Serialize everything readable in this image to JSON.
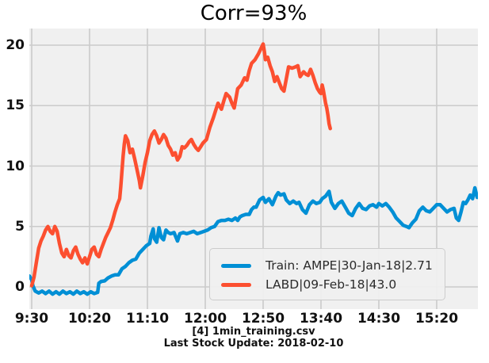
{
  "title": "Corr=93%",
  "captions": {
    "line1": "[4] 1min_training.csv",
    "line2": "Last Stock Update: 2018-02-10"
  },
  "legend": {
    "items": [
      {
        "label": "Train: AMPE|30-Jan-18|2.71",
        "color": "#008fd5"
      },
      {
        "label": "LABD|09-Feb-18|43.0",
        "color": "#fc4f30"
      }
    ]
  },
  "colors": {
    "figure_background": "#ffffff",
    "axes_background": "#f0f0f0",
    "grid": "#cbcbcb",
    "train_line": "#008fd5",
    "labd_line": "#fc4f30",
    "text": "#111111"
  },
  "chart_data": {
    "type": "line",
    "title": "Corr=93%",
    "xlabel": "",
    "ylabel": "",
    "grid": true,
    "legend_position": "lower right",
    "x_unit": "minutes since 9:30",
    "xlim": [
      -2.1,
      385.5
    ],
    "ylim": [
      -1.85,
      21.4
    ],
    "y_ticks": [
      0,
      5,
      10,
      15,
      20
    ],
    "x_ticks": [
      {
        "t": 0,
        "label": "9:30"
      },
      {
        "t": 50,
        "label": "10:20"
      },
      {
        "t": 100,
        "label": "11:10"
      },
      {
        "t": 150,
        "label": "12:00"
      },
      {
        "t": 200,
        "label": "12:50"
      },
      {
        "t": 250,
        "label": "13:40"
      },
      {
        "t": 300,
        "label": "14:30"
      },
      {
        "t": 350,
        "label": "15:20"
      }
    ],
    "series": [
      {
        "name": "Train: AMPE|30-Jan-18|2.71",
        "color": "#008fd5",
        "points": [
          [
            -2,
            0.9
          ],
          [
            0,
            0.6
          ],
          [
            1,
            0.1
          ],
          [
            3,
            -0.35
          ],
          [
            6,
            -0.5
          ],
          [
            9,
            -0.35
          ],
          [
            12,
            -0.55
          ],
          [
            15,
            -0.35
          ],
          [
            18,
            -0.6
          ],
          [
            21,
            -0.4
          ],
          [
            24,
            -0.6
          ],
          [
            27,
            -0.35
          ],
          [
            30,
            -0.55
          ],
          [
            33,
            -0.4
          ],
          [
            36,
            -0.6
          ],
          [
            39,
            -0.35
          ],
          [
            42,
            -0.55
          ],
          [
            45,
            -0.4
          ],
          [
            48,
            -0.6
          ],
          [
            51,
            -0.4
          ],
          [
            54,
            -0.55
          ],
          [
            57,
            -0.45
          ],
          [
            58,
            0.3
          ],
          [
            60,
            0.45
          ],
          [
            63,
            0.5
          ],
          [
            66,
            0.75
          ],
          [
            69,
            0.9
          ],
          [
            72,
            1.0
          ],
          [
            75,
            1.0
          ],
          [
            78,
            1.5
          ],
          [
            81,
            1.7
          ],
          [
            84,
            2.0
          ],
          [
            87,
            2.2
          ],
          [
            90,
            2.3
          ],
          [
            93,
            2.8
          ],
          [
            96,
            3.1
          ],
          [
            99,
            3.4
          ],
          [
            102,
            3.6
          ],
          [
            103,
            4.2
          ],
          [
            105,
            4.8
          ],
          [
            106,
            4.0
          ],
          [
            108,
            3.7
          ],
          [
            110,
            4.9
          ],
          [
            112,
            4.1
          ],
          [
            114,
            3.9
          ],
          [
            116,
            4.7
          ],
          [
            118,
            4.5
          ],
          [
            120,
            4.4
          ],
          [
            123,
            4.5
          ],
          [
            126,
            3.8
          ],
          [
            128,
            4.4
          ],
          [
            131,
            4.5
          ],
          [
            134,
            4.4
          ],
          [
            137,
            4.5
          ],
          [
            140,
            4.6
          ],
          [
            143,
            4.4
          ],
          [
            146,
            4.5
          ],
          [
            149,
            4.6
          ],
          [
            152,
            4.7
          ],
          [
            155,
            4.9
          ],
          [
            158,
            5.0
          ],
          [
            161,
            5.4
          ],
          [
            164,
            5.5
          ],
          [
            167,
            5.5
          ],
          [
            170,
            5.6
          ],
          [
            173,
            5.5
          ],
          [
            176,
            5.7
          ],
          [
            178,
            5.5
          ],
          [
            180,
            5.8
          ],
          [
            182,
            5.9
          ],
          [
            185,
            6.0
          ],
          [
            188,
            6.0
          ],
          [
            190,
            6.4
          ],
          [
            192,
            6.6
          ],
          [
            194,
            6.6
          ],
          [
            197,
            7.2
          ],
          [
            200,
            7.4
          ],
          [
            202,
            7.0
          ],
          [
            205,
            7.3
          ],
          [
            208,
            6.8
          ],
          [
            211,
            7.5
          ],
          [
            213,
            7.8
          ],
          [
            215,
            7.6
          ],
          [
            218,
            7.7
          ],
          [
            220,
            7.2
          ],
          [
            223,
            6.9
          ],
          [
            226,
            7.1
          ],
          [
            229,
            6.9
          ],
          [
            231,
            7.0
          ],
          [
            234,
            6.4
          ],
          [
            237,
            6.1
          ],
          [
            240,
            6.8
          ],
          [
            243,
            7.1
          ],
          [
            246,
            6.9
          ],
          [
            249,
            7.0
          ],
          [
            251,
            7.3
          ],
          [
            254,
            7.5
          ],
          [
            257,
            7.9
          ],
          [
            259,
            7.0
          ],
          [
            262,
            6.5
          ],
          [
            265,
            6.9
          ],
          [
            268,
            7.1
          ],
          [
            271,
            6.6
          ],
          [
            274,
            6.1
          ],
          [
            277,
            5.9
          ],
          [
            280,
            6.5
          ],
          [
            283,
            6.9
          ],
          [
            286,
            6.5
          ],
          [
            289,
            6.4
          ],
          [
            292,
            6.7
          ],
          [
            295,
            6.8
          ],
          [
            298,
            6.6
          ],
          [
            300,
            6.9
          ],
          [
            303,
            6.7
          ],
          [
            306,
            6.9
          ],
          [
            309,
            6.6
          ],
          [
            312,
            6.2
          ],
          [
            315,
            5.7
          ],
          [
            318,
            5.4
          ],
          [
            321,
            5.1
          ],
          [
            324,
            5.0
          ],
          [
            326,
            4.9
          ],
          [
            329,
            5.3
          ],
          [
            332,
            5.6
          ],
          [
            335,
            6.3
          ],
          [
            338,
            6.6
          ],
          [
            341,
            6.3
          ],
          [
            344,
            6.2
          ],
          [
            347,
            6.5
          ],
          [
            350,
            6.8
          ],
          [
            353,
            6.8
          ],
          [
            356,
            6.5
          ],
          [
            359,
            6.2
          ],
          [
            362,
            6.4
          ],
          [
            365,
            6.5
          ],
          [
            367,
            5.7
          ],
          [
            369,
            5.5
          ],
          [
            371,
            6.2
          ],
          [
            373,
            7.0
          ],
          [
            375,
            6.9
          ],
          [
            377,
            7.2
          ],
          [
            379,
            7.6
          ],
          [
            381,
            7.3
          ],
          [
            383,
            8.2
          ],
          [
            385,
            7.4
          ]
        ]
      },
      {
        "name": "LABD|09-Feb-18|43.0",
        "color": "#fc4f30",
        "points": [
          [
            0,
            0.1
          ],
          [
            2,
            0.8
          ],
          [
            4,
            2.0
          ],
          [
            6,
            3.2
          ],
          [
            8,
            3.8
          ],
          [
            10,
            4.2
          ],
          [
            12,
            4.7
          ],
          [
            14,
            5.0
          ],
          [
            16,
            4.6
          ],
          [
            18,
            4.4
          ],
          [
            20,
            5.0
          ],
          [
            22,
            4.6
          ],
          [
            24,
            3.6
          ],
          [
            26,
            2.8
          ],
          [
            28,
            2.5
          ],
          [
            30,
            3.1
          ],
          [
            32,
            2.6
          ],
          [
            34,
            2.4
          ],
          [
            36,
            3.0
          ],
          [
            38,
            3.3
          ],
          [
            40,
            2.7
          ],
          [
            42,
            2.3
          ],
          [
            44,
            2.0
          ],
          [
            46,
            2.4
          ],
          [
            48,
            1.9
          ],
          [
            50,
            2.5
          ],
          [
            52,
            3.1
          ],
          [
            54,
            3.3
          ],
          [
            56,
            2.7
          ],
          [
            58,
            2.5
          ],
          [
            60,
            3.1
          ],
          [
            62,
            3.6
          ],
          [
            64,
            4.1
          ],
          [
            66,
            4.5
          ],
          [
            68,
            4.9
          ],
          [
            70,
            5.5
          ],
          [
            72,
            6.2
          ],
          [
            74,
            6.8
          ],
          [
            76,
            7.3
          ],
          [
            77,
            8.3
          ],
          [
            78,
            9.6
          ],
          [
            79,
            10.8
          ],
          [
            80,
            11.8
          ],
          [
            81,
            12.5
          ],
          [
            83,
            12.1
          ],
          [
            85,
            11.1
          ],
          [
            87,
            11.4
          ],
          [
            89,
            10.6
          ],
          [
            91,
            9.7
          ],
          [
            93,
            8.8
          ],
          [
            94,
            8.2
          ],
          [
            96,
            9.2
          ],
          [
            98,
            10.3
          ],
          [
            100,
            11.1
          ],
          [
            102,
            12.1
          ],
          [
            104,
            12.6
          ],
          [
            106,
            12.9
          ],
          [
            108,
            12.5
          ],
          [
            110,
            11.9
          ],
          [
            112,
            12.2
          ],
          [
            114,
            12.6
          ],
          [
            116,
            12.3
          ],
          [
            118,
            11.7
          ],
          [
            120,
            11.4
          ],
          [
            122,
            10.9
          ],
          [
            124,
            11.1
          ],
          [
            126,
            10.5
          ],
          [
            128,
            10.8
          ],
          [
            130,
            11.6
          ],
          [
            132,
            11.5
          ],
          [
            134,
            11.7
          ],
          [
            136,
            12.0
          ],
          [
            138,
            12.2
          ],
          [
            140,
            11.8
          ],
          [
            142,
            11.5
          ],
          [
            144,
            11.3
          ],
          [
            146,
            11.6
          ],
          [
            148,
            11.9
          ],
          [
            151,
            12.2
          ],
          [
            154,
            13.2
          ],
          [
            157,
            14.0
          ],
          [
            159,
            14.6
          ],
          [
            161,
            15.2
          ],
          [
            164,
            14.7
          ],
          [
            166,
            15.4
          ],
          [
            168,
            16.0
          ],
          [
            171,
            15.7
          ],
          [
            173,
            15.2
          ],
          [
            175,
            14.8
          ],
          [
            178,
            16.4
          ],
          [
            181,
            16.7
          ],
          [
            184,
            17.3
          ],
          [
            186,
            17.1
          ],
          [
            188,
            17.9
          ],
          [
            190,
            18.5
          ],
          [
            193,
            18.8
          ],
          [
            196,
            19.3
          ],
          [
            198,
            19.7
          ],
          [
            200,
            20.1
          ],
          [
            201,
            19.5
          ],
          [
            202,
            18.8
          ],
          [
            204,
            19.0
          ],
          [
            206,
            18.3
          ],
          [
            208,
            17.8
          ],
          [
            210,
            17.0
          ],
          [
            212,
            17.4
          ],
          [
            214,
            16.9
          ],
          [
            216,
            16.4
          ],
          [
            218,
            16.2
          ],
          [
            220,
            17.2
          ],
          [
            222,
            18.2
          ],
          [
            225,
            18.1
          ],
          [
            228,
            18.2
          ],
          [
            230,
            18.3
          ],
          [
            232,
            17.4
          ],
          [
            235,
            17.8
          ],
          [
            237,
            17.6
          ],
          [
            239,
            17.5
          ],
          [
            241,
            18.0
          ],
          [
            243,
            17.5
          ],
          [
            245,
            16.9
          ],
          [
            247,
            16.4
          ],
          [
            249,
            16.1
          ],
          [
            250,
            16.0
          ],
          [
            251,
            16.7
          ],
          [
            252,
            16.3
          ],
          [
            254,
            15.2
          ],
          [
            255,
            14.8
          ],
          [
            256,
            14.2
          ],
          [
            257,
            13.5
          ],
          [
            258,
            13.1
          ]
        ]
      }
    ]
  }
}
